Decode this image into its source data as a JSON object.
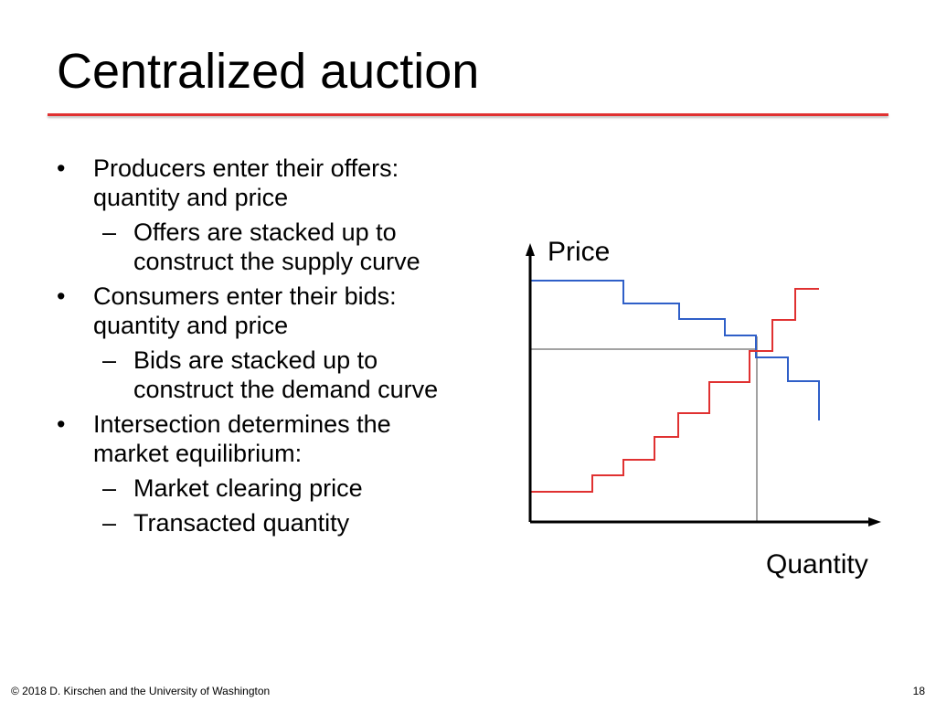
{
  "slide": {
    "title": "Centralized auction",
    "footer": {
      "copyright": "© 2018 D. Kirschen and the University of Washington",
      "page": "18"
    }
  },
  "bullets": [
    {
      "text": "Producers enter their offers: quantity and price",
      "subs": [
        "Offers are stacked up to construct the supply curve"
      ]
    },
    {
      "text": "Consumers enter their bids: quantity and price",
      "subs": [
        "Bids are stacked up to construct the demand curve"
      ]
    },
    {
      "text": "Intersection determines the market equilibrium:",
      "subs": [
        "Market clearing price",
        "Transacted quantity"
      ]
    }
  ],
  "diagram": {
    "y_axis_label": "Price",
    "x_axis_label": "Quantity",
    "colors": {
      "supply": "#e03131",
      "demand": "#2f5fc8",
      "guide": "#444444"
    }
  }
}
